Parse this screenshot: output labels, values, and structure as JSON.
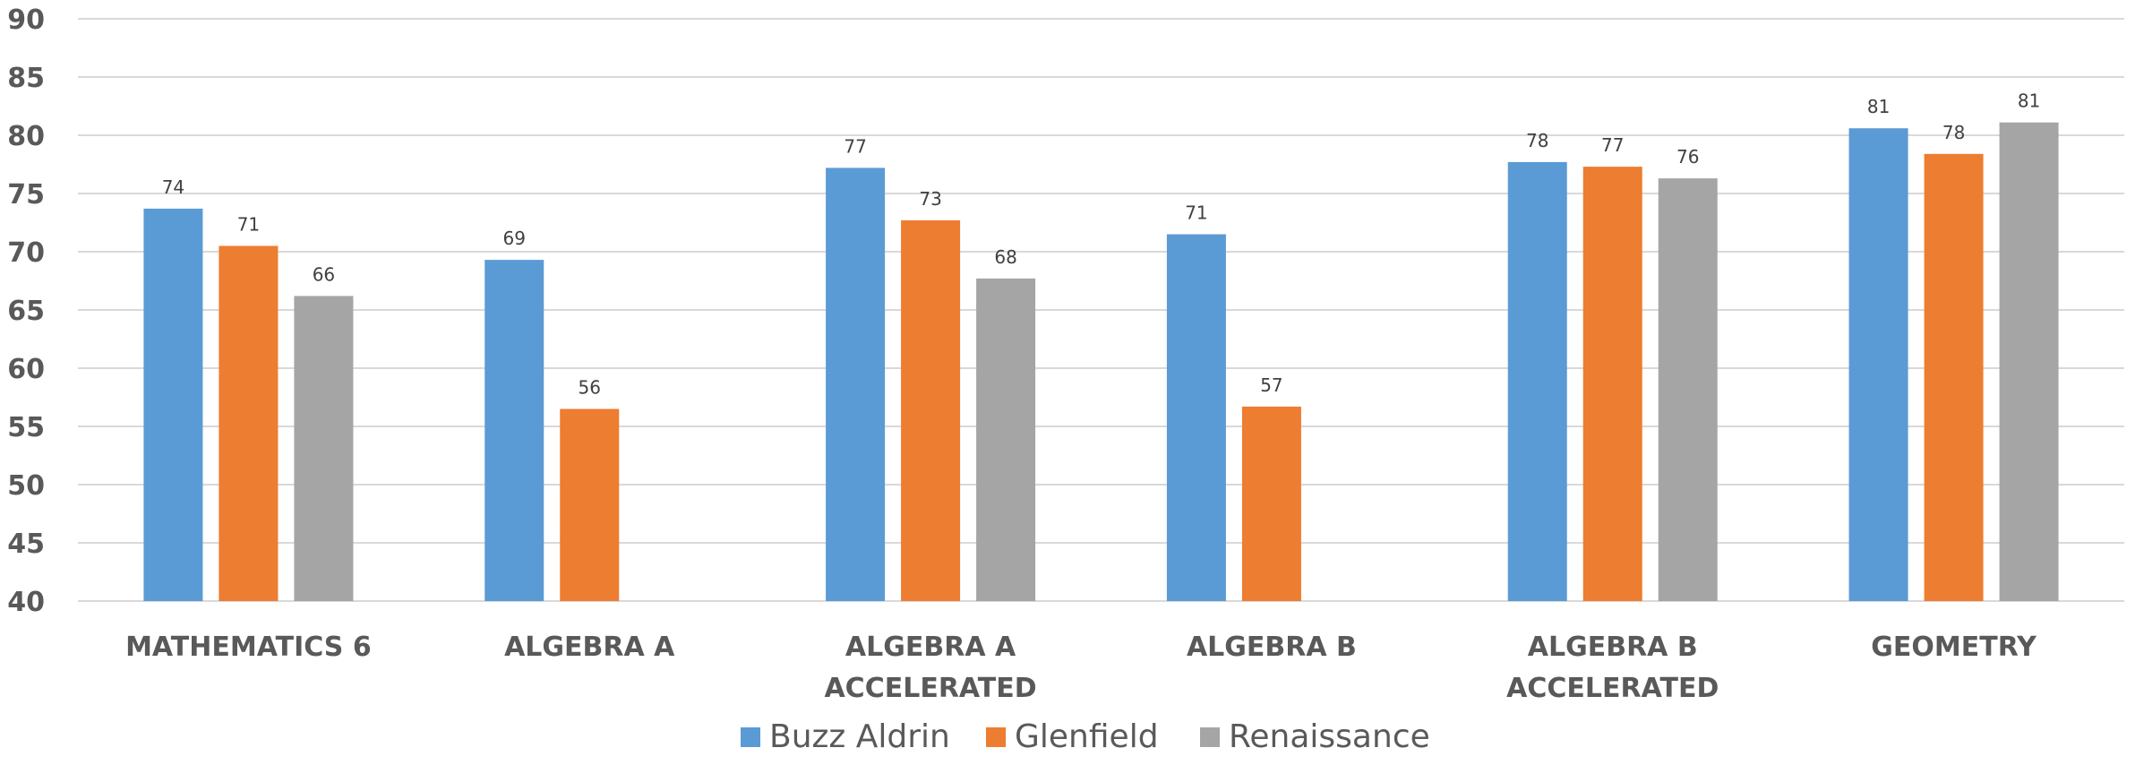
{
  "chart_data": {
    "type": "bar",
    "categories": [
      [
        "MATHEMATICS 6"
      ],
      [
        "ALGEBRA A"
      ],
      [
        "ALGEBRA A",
        "ACCELERATED"
      ],
      [
        "ALGEBRA B"
      ],
      [
        "ALGEBRA B",
        "ACCELERATED"
      ],
      [
        "GEOMETRY"
      ]
    ],
    "series": [
      {
        "name": "Buzz Aldrin",
        "color": "#5b9bd5",
        "values": [
          73.7,
          69.3,
          77.2,
          71.5,
          77.7,
          80.6
        ],
        "labels": [
          "74",
          "69",
          "77",
          "71",
          "78",
          "81"
        ]
      },
      {
        "name": "Glenfield",
        "color": "#ed7d31",
        "values": [
          70.5,
          56.5,
          72.7,
          56.7,
          77.3,
          78.4
        ],
        "labels": [
          "71",
          "56",
          "73",
          "57",
          "77",
          "78"
        ]
      },
      {
        "name": "Renaissance",
        "color": "#a5a5a5",
        "values": [
          66.2,
          null,
          67.7,
          null,
          76.3,
          81.1
        ],
        "labels": [
          "66",
          "",
          "68",
          "",
          "76",
          "81"
        ]
      }
    ],
    "ylim": [
      40,
      90
    ],
    "yticks": [
      "40",
      "45",
      "50",
      "55",
      "60",
      "65",
      "70",
      "75",
      "80",
      "85",
      "90"
    ],
    "grid": true,
    "legend": "bottom-center"
  }
}
